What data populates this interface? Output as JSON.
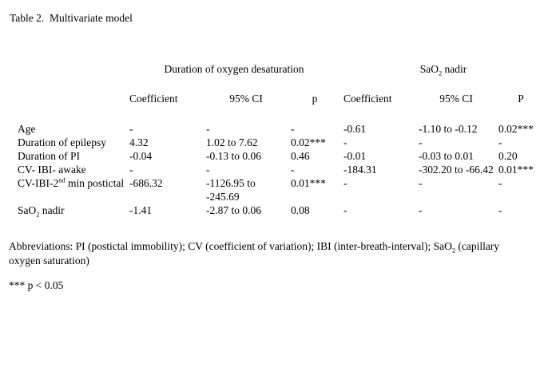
{
  "title": "Table 2.  Multivariate model",
  "table": {
    "group_headers": [
      {
        "label": "Duration of oxygen desaturation"
      },
      {
        "label": "SaO_{2} nadir"
      }
    ],
    "column_headers": [
      "Coefficient",
      "95% CI",
      "p",
      "Coefficient",
      "95% CI",
      "P"
    ],
    "rows": [
      {
        "label": "Age",
        "cells": [
          "-",
          "-",
          "-",
          "-0.61",
          "-1.10 to -0.12",
          "0.02***"
        ]
      },
      {
        "label": "Duration of epilepsy",
        "cells": [
          "4.32",
          "1.02 to 7.62",
          "0.02***",
          "-",
          "-",
          "-"
        ]
      },
      {
        "label": "Duration of PI",
        "cells": [
          "-0.04",
          "-0.13 to 0.06",
          "0.46",
          "-0.01",
          "-0.03 to 0.01",
          "0.20"
        ]
      },
      {
        "label": "CV- IBI- awake",
        "cells": [
          "-",
          "-",
          "-",
          "-184.31",
          "-302.20 to -66.42",
          "0.01***"
        ]
      },
      {
        "label": "CV-IBI-2^{nd} min postictal",
        "cells": [
          "-686.32",
          "-1126.95 to -245.69",
          "0.01***",
          "-",
          "-",
          "-"
        ]
      },
      {
        "label": "SaO_{2} nadir",
        "cells": [
          "-1.41",
          "-2.87 to 0.06",
          "0.08",
          "-",
          "-",
          "-"
        ]
      }
    ]
  },
  "footnotes": {
    "abbreviations": "Abbreviations: PI (postictal immobility); CV (coefficient of variation); IBI (inter-breath-interval); SaO_{2} (capillary oxygen saturation)",
    "significance": "*** p < 0.05"
  }
}
